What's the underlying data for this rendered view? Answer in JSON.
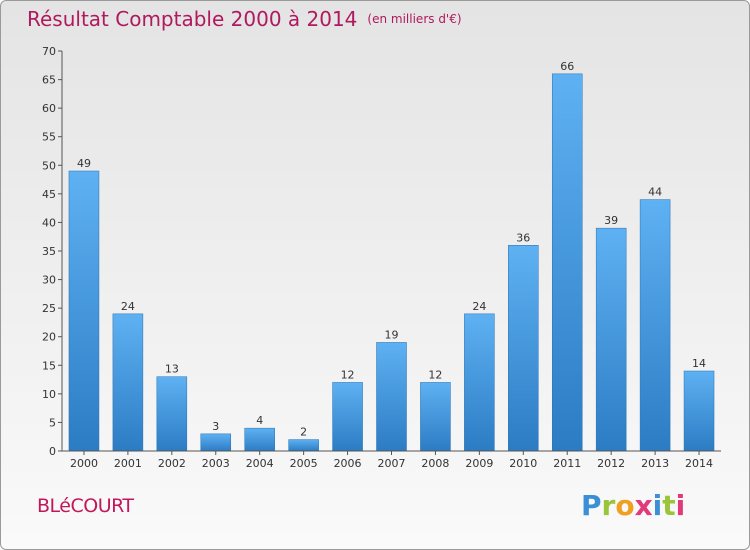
{
  "header": {
    "title": "Résultat Comptable 2000 à 2014",
    "unit": "(en milliers d'€)"
  },
  "footer": {
    "commune": "BLéCOURT",
    "logo": [
      "P",
      "r",
      "o",
      "x",
      "i",
      "t",
      "i"
    ]
  },
  "colors": {
    "title": "#b0195e",
    "bar_light": "#5aaef0",
    "bar_dark": "#2f80c8"
  },
  "chart_data": {
    "type": "bar",
    "title": "Résultat Comptable 2000 à 2014",
    "ylabel": "(en milliers d'€)",
    "xlabel": "",
    "categories": [
      "2000",
      "2001",
      "2002",
      "2003",
      "2004",
      "2005",
      "2006",
      "2007",
      "2008",
      "2009",
      "2010",
      "2011",
      "2012",
      "2013",
      "2014"
    ],
    "values": [
      49,
      24,
      13,
      3,
      4,
      2,
      12,
      19,
      12,
      24,
      36,
      66,
      39,
      44,
      14
    ],
    "ylim": [
      0,
      70
    ],
    "yticks": [
      0,
      5,
      10,
      15,
      20,
      25,
      30,
      35,
      40,
      45,
      50,
      55,
      60,
      65,
      70
    ],
    "grid": false,
    "data_labels": true
  }
}
